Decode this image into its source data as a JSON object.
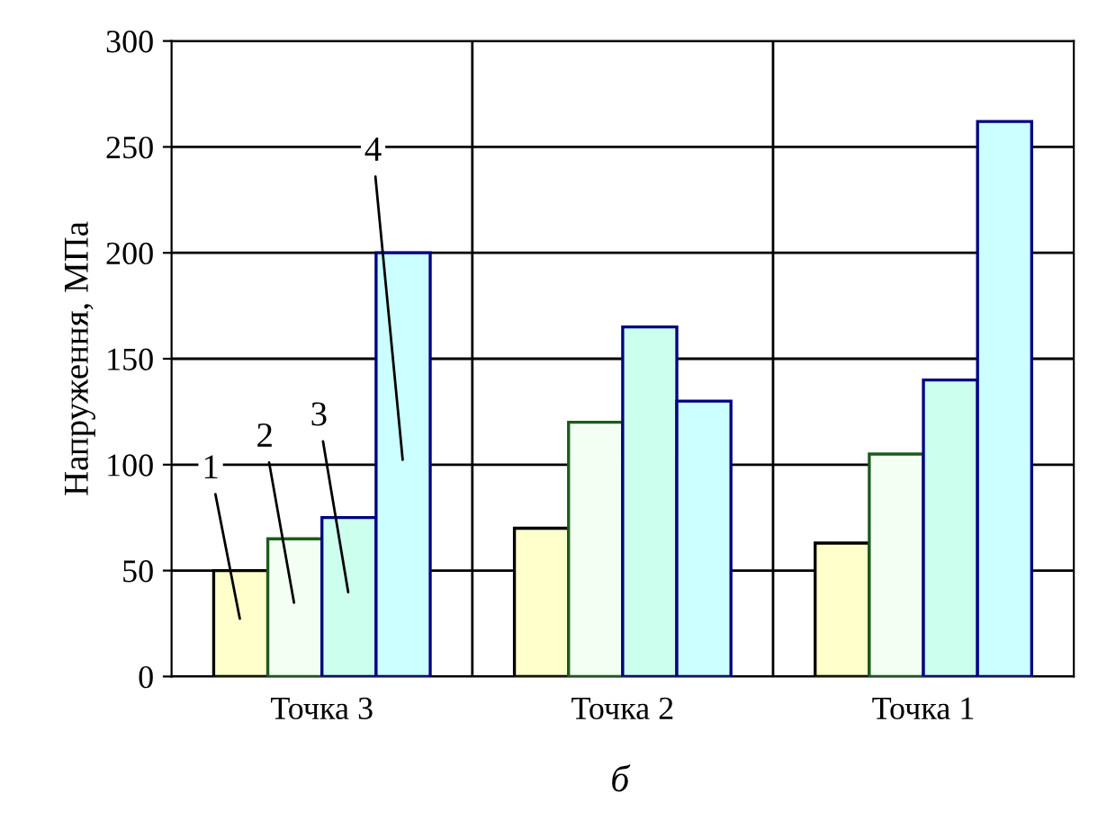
{
  "chart_data": {
    "type": "bar",
    "title": "б",
    "ylabel": "Напруження, МПа",
    "categories": [
      "Точка 3",
      "Точка 2",
      "Точка 1"
    ],
    "series": [
      {
        "name": "1",
        "color": "#ffffcc",
        "values": [
          50,
          70,
          63
        ]
      },
      {
        "name": "2",
        "color": "#f4fff4",
        "values": [
          65,
          120,
          105
        ]
      },
      {
        "name": "3",
        "color": "#ccffee",
        "values": [
          75,
          165,
          140
        ]
      },
      {
        "name": "4",
        "color": "#ccffff",
        "values": [
          200,
          130,
          262
        ]
      }
    ],
    "ylim": [
      0,
      300
    ],
    "yticks": [
      0,
      50,
      100,
      150,
      200,
      250,
      300
    ],
    "grid": true,
    "legend": false
  }
}
